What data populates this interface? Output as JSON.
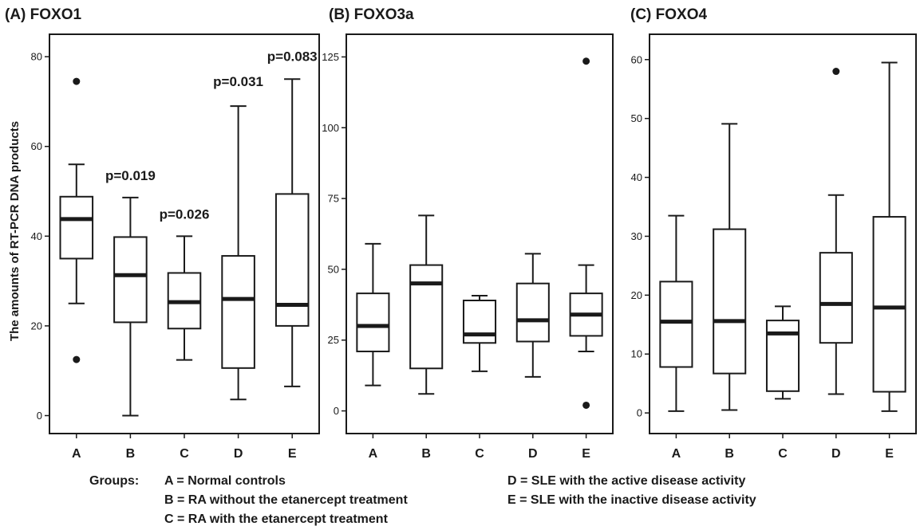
{
  "ylabel": "The amounts of RT-PCR DNA products",
  "legend": {
    "heading": "Groups:",
    "entries": [
      "A = Normal controls",
      "B = RA without the etanercept treatment",
      "C = RA with the etanercept treatment",
      "D = SLE with the active disease activity",
      "E = SLE with the inactive disease activity"
    ]
  },
  "chart_data": [
    {
      "type": "box",
      "title": "(A) FOXO1",
      "ylabel": "The amounts of RT-PCR DNA products",
      "categories": [
        "A",
        "B",
        "C",
        "D",
        "E"
      ],
      "yticks": [
        0,
        20,
        40,
        60,
        80
      ],
      "ylim": [
        -4,
        85
      ],
      "boxes": [
        {
          "whisker_low": 25,
          "q1": 35,
          "median": 43.8,
          "q3": 48.8,
          "whisker_high": 56,
          "outliers": [
            74.5,
            12.5
          ]
        },
        {
          "whisker_low": 0,
          "q1": 20.8,
          "median": 31.3,
          "q3": 39.8,
          "whisker_high": 48.6,
          "outliers": []
        },
        {
          "whisker_low": 12.4,
          "q1": 19.4,
          "median": 25.3,
          "q3": 31.8,
          "whisker_high": 40,
          "outliers": []
        },
        {
          "whisker_low": 3.6,
          "q1": 10.6,
          "median": 26,
          "q3": 35.6,
          "whisker_high": 69,
          "outliers": []
        },
        {
          "whisker_low": 6.5,
          "q1": 20,
          "median": 24.7,
          "q3": 49.4,
          "whisker_high": 75,
          "outliers": []
        }
      ],
      "annotations": [
        {
          "category": "B",
          "text": "p=0.019"
        },
        {
          "category": "C",
          "text": "p=0.026"
        },
        {
          "category": "D",
          "text": "p=0.031"
        },
        {
          "category": "E",
          "text": "p=0.083"
        }
      ]
    },
    {
      "type": "box",
      "title": "(B) FOXO3a",
      "categories": [
        "A",
        "B",
        "C",
        "D",
        "E"
      ],
      "yticks": [
        0,
        25,
        50,
        75,
        100,
        125
      ],
      "ylim": [
        -8,
        133
      ],
      "boxes": [
        {
          "whisker_low": 9,
          "q1": 21,
          "median": 30,
          "q3": 41.5,
          "whisker_high": 59,
          "outliers": []
        },
        {
          "whisker_low": 6,
          "q1": 15,
          "median": 45,
          "q3": 51.5,
          "whisker_high": 69,
          "outliers": []
        },
        {
          "whisker_low": 14,
          "q1": 24,
          "median": 27,
          "q3": 39,
          "whisker_high": 40.7,
          "outliers": []
        },
        {
          "whisker_low": 12,
          "q1": 24.5,
          "median": 32,
          "q3": 45,
          "whisker_high": 55.5,
          "outliers": []
        },
        {
          "whisker_low": 21,
          "q1": 26.5,
          "median": 34,
          "q3": 41.5,
          "whisker_high": 51.5,
          "outliers": [
            123.5,
            2
          ]
        }
      ],
      "annotations": []
    },
    {
      "type": "box",
      "title": "(C) FOXO4",
      "categories": [
        "A",
        "B",
        "C",
        "D",
        "E"
      ],
      "yticks": [
        0,
        10,
        20,
        30,
        40,
        50,
        60
      ],
      "ylim": [
        -3.5,
        64.3
      ],
      "boxes": [
        {
          "whisker_low": 0.3,
          "q1": 7.8,
          "median": 15.5,
          "q3": 22.3,
          "whisker_high": 33.5,
          "outliers": []
        },
        {
          "whisker_low": 0.5,
          "q1": 6.7,
          "median": 15.6,
          "q3": 31.2,
          "whisker_high": 49.1,
          "outliers": []
        },
        {
          "whisker_low": 2.4,
          "q1": 3.7,
          "median": 13.5,
          "q3": 15.7,
          "whisker_high": 18.1,
          "outliers": []
        },
        {
          "whisker_low": 3.2,
          "q1": 11.9,
          "median": 18.5,
          "q3": 27.2,
          "whisker_high": 37,
          "outliers": [
            58
          ]
        },
        {
          "whisker_low": 0.3,
          "q1": 3.6,
          "median": 17.9,
          "q3": 33.3,
          "whisker_high": 59.5,
          "outliers": []
        }
      ],
      "annotations": []
    }
  ]
}
